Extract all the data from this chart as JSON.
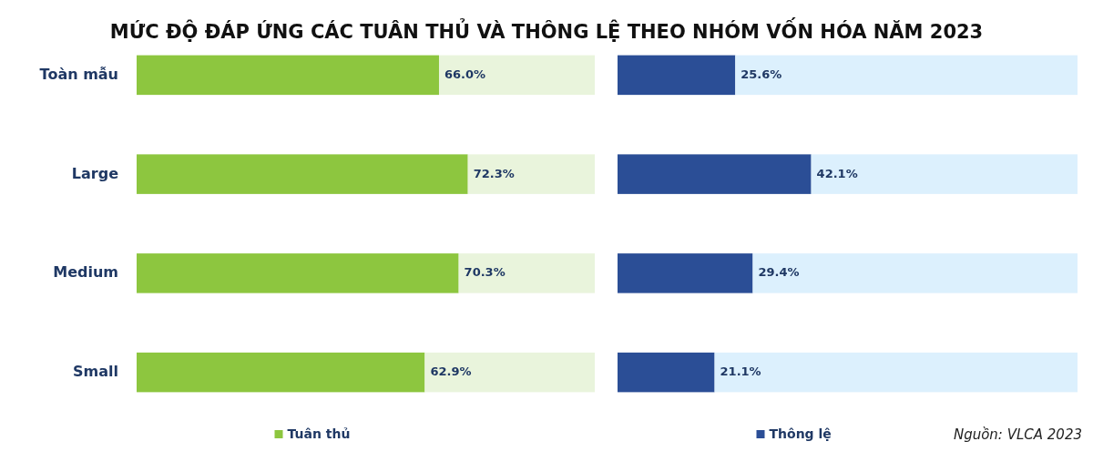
{
  "chart_data": [
    {
      "type": "bar",
      "title": "MỨC ĐỘ ĐÁP ỨNG CÁC TUÂN THỦ VÀ THÔNG LỆ THEO NHÓM VỐN HÓA NĂM 2023",
      "orientation": "horizontal",
      "stacked": true,
      "categories": [
        "Toàn mẫu",
        "Large",
        "Medium",
        "Small"
      ],
      "xlim": [
        0,
        100
      ],
      "tick_labels": "y",
      "legend": "bottom",
      "series": [
        {
          "name": "Tuân thủ",
          "color": "#8dc63f",
          "values": [
            66.0,
            72.3,
            70.3,
            62.9
          ],
          "value_labels": [
            "66.0%",
            "72.3%",
            "70.3%",
            "62.9%"
          ]
        },
        {
          "color": "#e9f4dc",
          "values": [
            34.0,
            27.7,
            29.7,
            37.1
          ]
        }
      ]
    },
    {
      "type": "bar",
      "orientation": "horizontal",
      "stacked": true,
      "categories": [
        null,
        null,
        null,
        null
      ],
      "xlim": [
        0,
        100
      ],
      "tick_labels": false,
      "legend": "bottom",
      "annotations": [
        "Nguồn: VLCA 2023"
      ],
      "series": [
        {
          "name": "Thông lệ",
          "color": "#2b4e96",
          "values": [
            25.6,
            42.1,
            29.4,
            21.1
          ],
          "value_labels": [
            "25.6%",
            "42.1%",
            "29.4%",
            "21.1%"
          ]
        },
        {
          "color": "#dcf0fd",
          "values": [
            74.4,
            57.9,
            70.6,
            78.9
          ]
        }
      ]
    }
  ]
}
